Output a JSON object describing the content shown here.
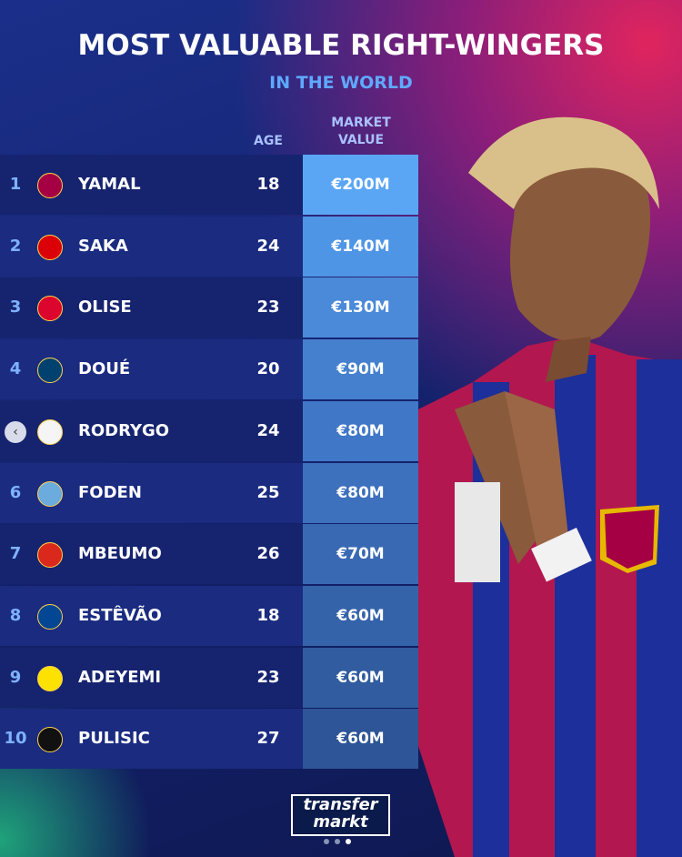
{
  "header": {
    "title": "MOST VALUABLE RIGHT-WINGERS",
    "subtitle": "IN THE WORLD"
  },
  "table": {
    "columns": {
      "age": "AGE",
      "value": "MARKET VALUE"
    },
    "rows": [
      {
        "rank": 1,
        "name": "YAMAL",
        "age": 18,
        "value": "€200M"
      },
      {
        "rank": 2,
        "name": "SAKA",
        "age": 24,
        "value": "€140M"
      },
      {
        "rank": 3,
        "name": "OLISE",
        "age": 23,
        "value": "€130M"
      },
      {
        "rank": 4,
        "name": "DOUÉ",
        "age": 20,
        "value": "€90M"
      },
      {
        "name": "RODRYGO",
        "age": 24,
        "value": "€80M"
      },
      {
        "rank": 6,
        "name": "FODEN",
        "age": 25,
        "value": "€80M"
      },
      {
        "rank": 7,
        "name": "MBEUMO",
        "age": 26,
        "value": "€70M"
      },
      {
        "rank": 8,
        "name": "ESTÊVÃO",
        "age": 18,
        "value": "€60M"
      },
      {
        "rank": 9,
        "name": "ADEYEMI",
        "age": 23,
        "value": "€60M"
      },
      {
        "rank": 10,
        "name": "PULISIC",
        "age": 27,
        "value": "€60M"
      }
    ]
  },
  "logo": {
    "line1": "transfer",
    "line2": "markt"
  }
}
